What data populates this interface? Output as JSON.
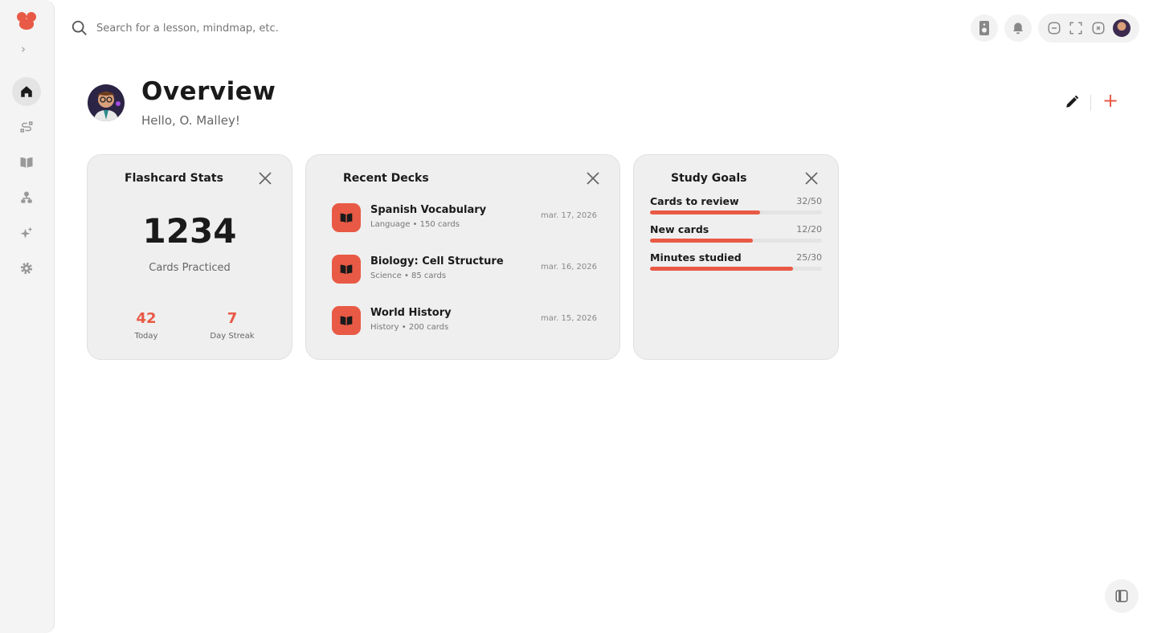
{
  "search": {
    "placeholder": "Search for a lesson, mindmap, etc."
  },
  "header": {
    "title": "Overview",
    "greeting": "Hello, O. Malley!"
  },
  "sidebar": {
    "items": [
      {
        "icon": "home-icon",
        "active": true
      },
      {
        "icon": "route-icon"
      },
      {
        "icon": "book-icon"
      },
      {
        "icon": "hierarchy-icon"
      },
      {
        "icon": "sparkle-icon"
      },
      {
        "icon": "settings-icon"
      }
    ]
  },
  "colors": {
    "accent": "#e85a45",
    "card_bg": "#efefef"
  },
  "flashcard_stats": {
    "title": "Flashcard Stats",
    "total": "1234",
    "total_label": "Cards Practiced",
    "today": "42",
    "today_label": "Today",
    "streak": "7",
    "streak_label": "Day Streak"
  },
  "recent_decks": {
    "title": "Recent Decks",
    "items": [
      {
        "name": "Spanish Vocabulary",
        "meta": "Language • 150 cards",
        "date": "mar. 17, 2026"
      },
      {
        "name": "Biology: Cell Structure",
        "meta": "Science • 85 cards",
        "date": "mar. 16, 2026"
      },
      {
        "name": "World History",
        "meta": "History • 200 cards",
        "date": "mar. 15, 2026"
      }
    ]
  },
  "study_goals": {
    "title": "Study Goals",
    "items": [
      {
        "name": "Cards to review",
        "count": "32/50",
        "progress": 64
      },
      {
        "name": "New cards",
        "count": "12/20",
        "progress": 60
      },
      {
        "name": "Minutes studied",
        "count": "25/30",
        "progress": 83.3
      }
    ]
  }
}
